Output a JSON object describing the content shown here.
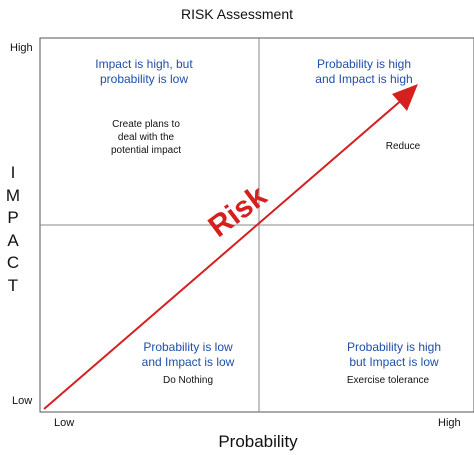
{
  "title": "RISK Assessment",
  "y_axis": {
    "label_letters": [
      "I",
      "M",
      "P",
      "A",
      "C",
      "T"
    ],
    "high": "High",
    "low": "Low"
  },
  "x_axis": {
    "label": "Probability",
    "low": "Low",
    "high": "High"
  },
  "quadrants": {
    "top_left": {
      "heading_lines": [
        "Impact is high, but",
        "probability is low"
      ],
      "action_lines": [
        "Create plans to",
        "deal with the",
        "potential impact"
      ]
    },
    "top_right": {
      "heading_lines": [
        "Probability is high",
        "and Impact is high"
      ],
      "action_lines": [
        "Reduce"
      ]
    },
    "bottom_left": {
      "heading_lines": [
        "Probability is low",
        "and Impact is low"
      ],
      "action_lines": [
        "Do Nothing"
      ]
    },
    "bottom_right": {
      "heading_lines": [
        "Probability is high",
        "but Impact is low"
      ],
      "action_lines": [
        "Exercise tolerance"
      ]
    }
  },
  "arrow": {
    "label": "Risk",
    "color": "#d62020"
  },
  "colors": {
    "heading_text": "#1f4fa8",
    "grid_border": "#555555",
    "grid_divider": "#888888",
    "risk": "#d62020"
  }
}
